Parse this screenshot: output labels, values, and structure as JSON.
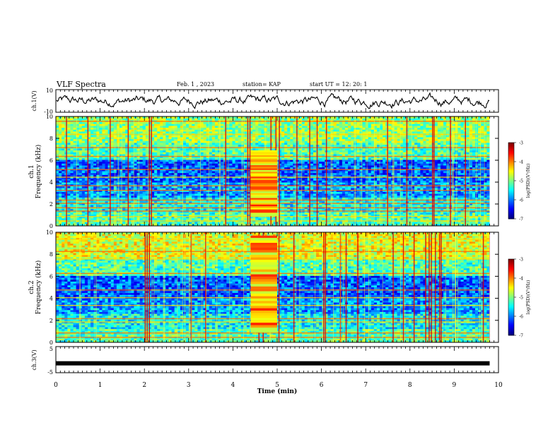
{
  "header": {
    "title": "VLF Spectra",
    "date": "Feb. 1 , 2023",
    "station": "station= KAP",
    "start": "start UT =  12: 20: 1"
  },
  "chart_data": [
    {
      "type": "line",
      "panel": "ch1-waveform",
      "ylabel": "ch.1(V)",
      "ylim": [
        -10,
        10
      ],
      "y_tick_labels": [
        "10",
        "-10"
      ],
      "x_range_min": [
        0,
        9.8
      ],
      "description_values": "noisy oscillating trace around 0 V, amplitude roughly -6..+7 V"
    },
    {
      "type": "heatmap",
      "panel": "ch1-spectrogram",
      "ylabel": "ch.1\nFrequency (kHz)",
      "ylim": [
        0,
        10
      ],
      "y_tick_labels": [
        "0",
        "2",
        "4",
        "6",
        "8",
        "10"
      ],
      "x_range_min": [
        0,
        9.8
      ],
      "colorbar": {
        "label": "log(PSD)(V²/Hz)",
        "range": [
          -7,
          -3
        ],
        "tick_labels": [
          "-3",
          "-4",
          "-5",
          "-6",
          "-7"
        ]
      },
      "bright_band_interval_min": [
        4.4,
        5.0
      ],
      "bright_band_freq_khz": [
        0.9,
        6.9
      ]
    },
    {
      "type": "heatmap",
      "panel": "ch2-spectrogram",
      "ylabel": "ch.2\nFrequency (kHz)",
      "ylim": [
        0,
        10
      ],
      "y_tick_labels": [
        "0",
        "2",
        "4",
        "6",
        "8",
        "10"
      ],
      "x_range_min": [
        0,
        9.8
      ],
      "colorbar": {
        "label": "log(PSD)(V²/Hz)",
        "range": [
          -7,
          -3
        ],
        "tick_labels": [
          "-3",
          "-4",
          "-5",
          "-6",
          "-7"
        ]
      },
      "bright_band_interval_min": [
        4.4,
        5.0
      ],
      "bright_band_freq_khz": [
        0.9,
        9.7
      ]
    },
    {
      "type": "line",
      "panel": "ch3-waveform",
      "ylabel": "ch.3(V)",
      "ylim": [
        -5,
        5
      ],
      "y_tick_labels": [
        "5",
        "-5"
      ],
      "x_range_min": [
        0,
        9.8
      ],
      "constant_value": -1.4
    }
  ],
  "x_axis": {
    "label": "Time (min)",
    "range": [
      0,
      10
    ],
    "tick_labels": [
      "0",
      "1",
      "2",
      "3",
      "4",
      "5",
      "6",
      "7",
      "8",
      "9",
      "10"
    ]
  },
  "colors": {
    "background": "#ffffff",
    "trace": "#000000",
    "spectrum_low": "#0000b4",
    "spectrum_mid": "#00ff00",
    "spectrum_high": "#ff0000"
  }
}
